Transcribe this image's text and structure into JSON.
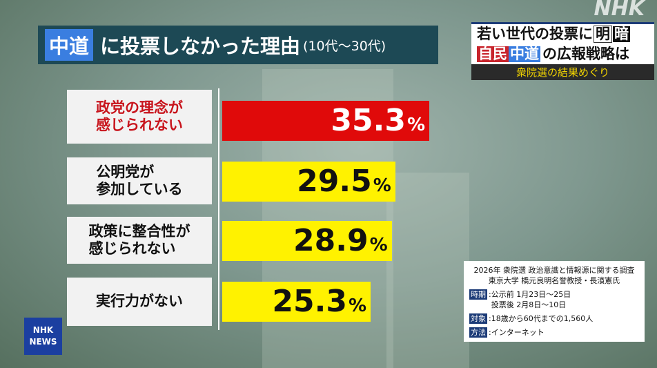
{
  "title": {
    "highlight": "中道",
    "main": "に投票しなかった理由",
    "sub": "(10代〜30代)"
  },
  "chart_data": {
    "type": "bar",
    "orientation": "horizontal",
    "unit": "%",
    "categories": [
      "政党の理念が\n感じられない",
      "公明党が\n参加している",
      "政策に整合性が\n感じられない",
      "実行力がない"
    ],
    "values": [
      35.3,
      29.5,
      28.9,
      25.3
    ],
    "value_labels": [
      "35.3",
      "29.5",
      "28.9",
      "25.3"
    ],
    "colors": [
      "#e00a0a",
      "#fff200",
      "#fff200",
      "#fff200"
    ]
  },
  "news": {
    "line1": "若い世代の投票に",
    "box1": "明",
    "box2": "暗",
    "red": "自民",
    "blue": "中道",
    "line2": "の広報戦略は",
    "line3": "衆院選の結果めぐり"
  },
  "watermark": "NHK",
  "logo": {
    "top": "NHK",
    "bottom": "NEWS"
  },
  "info": {
    "title1": "2026年 衆院選 政治意識と情報源に関する調査",
    "title2": "東京大学 橋元良明名誉教授・長濱憲氏",
    "period_tag": "時期",
    "period1": "公示前 1月23日〜25日",
    "period2": "投票後 2月8日〜10日",
    "target_tag": "対象",
    "target": "18歳から60代までの1,560人",
    "method_tag": "方法",
    "method": "インターネット"
  }
}
